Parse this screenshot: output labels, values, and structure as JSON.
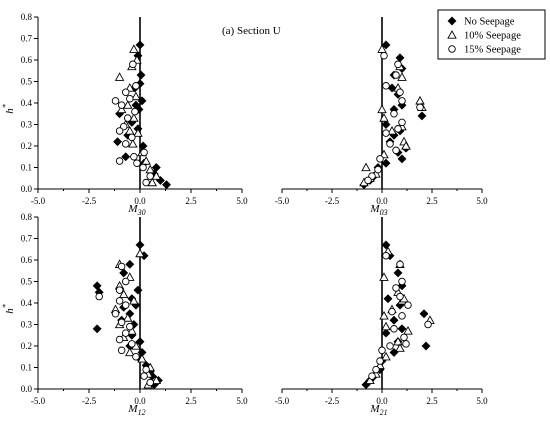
{
  "title": "(a) Section U",
  "legend": [
    {
      "label": "No Seepage",
      "marker": "diamond"
    },
    {
      "label": "10% Seepage",
      "marker": "triangle"
    },
    {
      "label": "15% Seepage",
      "marker": "circle"
    }
  ],
  "colors": {
    "ink": "#000000",
    "background": "#ffffff"
  },
  "chart_data": [
    {
      "type": "scatter",
      "xlabel_main": "M",
      "xlabel_sub": "30",
      "ylabel_main": "h",
      "ylabel_sup": "*",
      "xlim": [
        -5,
        5
      ],
      "ylim": [
        0,
        0.8
      ],
      "xticks": [
        "-5.0",
        "-2.5",
        "0.0",
        "2.5",
        "5.0"
      ],
      "yticks": [
        "0.0",
        "0.1",
        "0.2",
        "0.3",
        "0.4",
        "0.5",
        "0.6",
        "0.7",
        "0.8"
      ],
      "show_yaxis": true,
      "series": [
        {
          "name": "No Seepage",
          "marker": "diamond",
          "points": [
            [
              0.0,
              0.67
            ],
            [
              -0.1,
              0.62
            ],
            [
              0.05,
              0.53
            ],
            [
              -0.25,
              0.47
            ],
            [
              0.1,
              0.41
            ],
            [
              -0.2,
              0.39
            ],
            [
              -1.0,
              0.35
            ],
            [
              -0.4,
              0.31
            ],
            [
              -0.1,
              0.28
            ],
            [
              -0.6,
              0.25
            ],
            [
              -1.1,
              0.22
            ],
            [
              0.15,
              0.2
            ],
            [
              -0.7,
              0.15
            ],
            [
              0.2,
              0.12
            ],
            [
              0.8,
              0.1
            ],
            [
              0.7,
              0.07
            ],
            [
              1.0,
              0.04
            ],
            [
              1.3,
              0.02
            ],
            [
              -0.05,
              0.37
            ],
            [
              0.0,
              0.49
            ]
          ]
        },
        {
          "name": "10% Seepage",
          "marker": "triangle",
          "points": [
            [
              -0.3,
              0.65
            ],
            [
              -0.15,
              0.6
            ],
            [
              -0.4,
              0.57
            ],
            [
              -1.0,
              0.52
            ],
            [
              -0.5,
              0.47
            ],
            [
              -0.2,
              0.43
            ],
            [
              -0.6,
              0.39
            ],
            [
              -0.9,
              0.37
            ],
            [
              -0.3,
              0.33
            ],
            [
              -0.7,
              0.3
            ],
            [
              -0.1,
              0.26
            ],
            [
              -0.35,
              0.21
            ],
            [
              0.1,
              0.17
            ],
            [
              0.3,
              0.13
            ],
            [
              0.5,
              0.09
            ],
            [
              0.8,
              0.06
            ],
            [
              0.6,
              0.03
            ],
            [
              -0.5,
              0.27
            ]
          ]
        },
        {
          "name": "15% Seepage",
          "marker": "circle",
          "points": [
            [
              -0.35,
              0.58
            ],
            [
              -0.2,
              0.48
            ],
            [
              -0.7,
              0.45
            ],
            [
              -1.2,
              0.41
            ],
            [
              -0.5,
              0.42
            ],
            [
              -0.9,
              0.39
            ],
            [
              -0.25,
              0.36
            ],
            [
              -0.6,
              0.33
            ],
            [
              -0.8,
              0.29
            ],
            [
              -1.0,
              0.27
            ],
            [
              -0.4,
              0.24
            ],
            [
              -0.7,
              0.21
            ],
            [
              0.2,
              0.17
            ],
            [
              -0.3,
              0.15
            ],
            [
              0.15,
              0.1
            ],
            [
              0.5,
              0.06
            ],
            [
              0.3,
              0.03
            ],
            [
              -1.0,
              0.13
            ],
            [
              -0.15,
              0.12
            ]
          ]
        }
      ]
    },
    {
      "type": "scatter",
      "xlabel_main": "M",
      "xlabel_sub": "03",
      "xlim": [
        -5,
        5
      ],
      "ylim": [
        0,
        0.8
      ],
      "xticks": [
        "-5.0",
        "-2.5",
        "0.0",
        "2.5",
        "5.0"
      ],
      "show_yaxis": false,
      "series": [
        {
          "name": "No Seepage",
          "marker": "diamond",
          "points": [
            [
              0.2,
              0.67
            ],
            [
              0.9,
              0.61
            ],
            [
              1.0,
              0.56
            ],
            [
              0.6,
              0.53
            ],
            [
              0.5,
              0.47
            ],
            [
              0.8,
              0.44
            ],
            [
              1.0,
              0.39
            ],
            [
              0.6,
              0.37
            ],
            [
              2.0,
              0.34
            ],
            [
              0.2,
              0.3
            ],
            [
              0.9,
              0.27
            ],
            [
              0.6,
              0.25
            ],
            [
              0.4,
              0.22
            ],
            [
              1.2,
              0.19
            ],
            [
              0.8,
              0.17
            ],
            [
              1.0,
              0.14
            ],
            [
              0.2,
              0.12
            ],
            [
              -0.2,
              0.1
            ],
            [
              -0.4,
              0.06
            ],
            [
              -0.6,
              0.04
            ],
            [
              -0.9,
              0.02
            ]
          ]
        },
        {
          "name": "10% Seepage",
          "marker": "triangle",
          "points": [
            [
              0.0,
              0.65
            ],
            [
              0.9,
              0.57
            ],
            [
              1.0,
              0.52
            ],
            [
              0.8,
              0.47
            ],
            [
              1.9,
              0.41
            ],
            [
              0.0,
              0.37
            ],
            [
              2.0,
              0.38
            ],
            [
              0.1,
              0.33
            ],
            [
              1.0,
              0.29
            ],
            [
              0.5,
              0.27
            ],
            [
              1.1,
              0.22
            ],
            [
              1.2,
              0.2
            ],
            [
              0.1,
              0.16
            ],
            [
              -0.8,
              0.1
            ],
            [
              -0.3,
              0.07
            ],
            [
              -0.6,
              0.05
            ],
            [
              -0.9,
              0.03
            ]
          ]
        },
        {
          "name": "15% Seepage",
          "marker": "circle",
          "points": [
            [
              0.1,
              0.62
            ],
            [
              0.8,
              0.58
            ],
            [
              0.7,
              0.53
            ],
            [
              0.2,
              0.48
            ],
            [
              0.9,
              0.45
            ],
            [
              1.0,
              0.41
            ],
            [
              1.9,
              0.38
            ],
            [
              0.6,
              0.35
            ],
            [
              1.0,
              0.31
            ],
            [
              0.8,
              0.28
            ],
            [
              0.2,
              0.26
            ],
            [
              0.4,
              0.21
            ],
            [
              0.7,
              0.18
            ],
            [
              -0.1,
              0.14
            ],
            [
              -0.2,
              0.09
            ],
            [
              -0.5,
              0.06
            ],
            [
              -0.7,
              0.04
            ]
          ]
        }
      ]
    },
    {
      "type": "scatter",
      "xlabel_main": "M",
      "xlabel_sub": "12",
      "ylabel_main": "h",
      "ylabel_sup": "*",
      "xlim": [
        -5,
        5
      ],
      "ylim": [
        0,
        0.8
      ],
      "xticks": [
        "-5.0",
        "-2.5",
        "0.0",
        "2.5",
        "5.0"
      ],
      "yticks": [
        "0.0",
        "0.1",
        "0.2",
        "0.3",
        "0.4",
        "0.5",
        "0.6",
        "0.7",
        "0.8"
      ],
      "show_yaxis": true,
      "series": [
        {
          "name": "No Seepage",
          "marker": "diamond",
          "points": [
            [
              0.0,
              0.67
            ],
            [
              0.2,
              0.62
            ],
            [
              -0.5,
              0.58
            ],
            [
              -0.8,
              0.54
            ],
            [
              -2.1,
              0.48
            ],
            [
              -0.1,
              0.46
            ],
            [
              -2.0,
              0.45
            ],
            [
              -0.4,
              0.42
            ],
            [
              -0.2,
              0.39
            ],
            [
              -0.8,
              0.38
            ],
            [
              -0.5,
              0.35
            ],
            [
              -0.9,
              0.32
            ],
            [
              -0.3,
              0.3
            ],
            [
              -2.1,
              0.28
            ],
            [
              -0.4,
              0.25
            ],
            [
              0.0,
              0.22
            ],
            [
              -0.5,
              0.2
            ],
            [
              0.1,
              0.17
            ],
            [
              0.0,
              0.14
            ],
            [
              0.3,
              0.11
            ],
            [
              0.5,
              0.08
            ],
            [
              0.6,
              0.06
            ],
            [
              0.9,
              0.04
            ],
            [
              0.7,
              0.02
            ]
          ]
        },
        {
          "name": "10% Seepage",
          "marker": "triangle",
          "points": [
            [
              0.0,
              0.63
            ],
            [
              -1.0,
              0.58
            ],
            [
              -0.5,
              0.52
            ],
            [
              -1.0,
              0.48
            ],
            [
              -0.8,
              0.44
            ],
            [
              -0.3,
              0.41
            ],
            [
              -1.2,
              0.37
            ],
            [
              -0.6,
              0.33
            ],
            [
              -1.0,
              0.3
            ],
            [
              -0.4,
              0.27
            ],
            [
              -0.8,
              0.24
            ],
            [
              -0.2,
              0.2
            ],
            [
              -0.5,
              0.17
            ],
            [
              0.1,
              0.14
            ],
            [
              0.5,
              0.1
            ],
            [
              0.4,
              0.07
            ],
            [
              0.8,
              0.04
            ],
            [
              0.4,
              0.02
            ]
          ]
        },
        {
          "name": "15% Seepage",
          "marker": "circle",
          "points": [
            [
              -0.9,
              0.57
            ],
            [
              -0.7,
              0.5
            ],
            [
              -1.0,
              0.46
            ],
            [
              -2.0,
              0.43
            ],
            [
              -1.0,
              0.41
            ],
            [
              -0.7,
              0.39
            ],
            [
              -1.2,
              0.35
            ],
            [
              -0.9,
              0.31
            ],
            [
              -0.5,
              0.29
            ],
            [
              -0.7,
              0.26
            ],
            [
              -1.0,
              0.23
            ],
            [
              -0.4,
              0.21
            ],
            [
              -0.9,
              0.18
            ],
            [
              -0.2,
              0.15
            ],
            [
              0.3,
              0.09
            ],
            [
              0.2,
              0.06
            ],
            [
              0.5,
              0.03
            ]
          ]
        }
      ]
    },
    {
      "type": "scatter",
      "xlabel_main": "M",
      "xlabel_sub": "21",
      "xlim": [
        -5,
        5
      ],
      "ylim": [
        0,
        0.8
      ],
      "xticks": [
        "-5.0",
        "-2.5",
        "0.0",
        "2.5",
        "5.0"
      ],
      "show_yaxis": false,
      "series": [
        {
          "name": "No Seepage",
          "marker": "diamond",
          "points": [
            [
              0.2,
              0.67
            ],
            [
              0.4,
              0.62
            ],
            [
              0.8,
              0.54
            ],
            [
              1.0,
              0.48
            ],
            [
              0.3,
              0.42
            ],
            [
              0.9,
              0.39
            ],
            [
              2.1,
              0.35
            ],
            [
              0.6,
              0.32
            ],
            [
              1.0,
              0.28
            ],
            [
              0.2,
              0.26
            ],
            [
              0.8,
              0.22
            ],
            [
              2.2,
              0.2
            ],
            [
              0.6,
              0.17
            ],
            [
              0.0,
              0.13
            ],
            [
              -0.1,
              0.09
            ],
            [
              -0.4,
              0.06
            ],
            [
              -0.6,
              0.04
            ],
            [
              -0.8,
              0.02
            ]
          ]
        },
        {
          "name": "10% Seepage",
          "marker": "triangle",
          "points": [
            [
              0.3,
              0.64
            ],
            [
              0.9,
              0.58
            ],
            [
              0.1,
              0.52
            ],
            [
              0.8,
              0.45
            ],
            [
              1.0,
              0.41
            ],
            [
              0.5,
              0.37
            ],
            [
              2.4,
              0.32
            ],
            [
              0.2,
              0.29
            ],
            [
              1.3,
              0.27
            ],
            [
              0.8,
              0.22
            ],
            [
              0.9,
              0.19
            ],
            [
              0.2,
              0.15
            ],
            [
              -0.1,
              0.11
            ],
            [
              -0.3,
              0.07
            ],
            [
              -0.6,
              0.04
            ],
            [
              1.1,
              0.42
            ],
            [
              0.1,
              0.34
            ]
          ]
        },
        {
          "name": "15% Seepage",
          "marker": "circle",
          "points": [
            [
              0.2,
              0.62
            ],
            [
              0.9,
              0.58
            ],
            [
              1.0,
              0.5
            ],
            [
              0.7,
              0.47
            ],
            [
              0.9,
              0.43
            ],
            [
              1.3,
              0.39
            ],
            [
              0.5,
              0.36
            ],
            [
              1.0,
              0.34
            ],
            [
              2.3,
              0.3
            ],
            [
              0.6,
              0.28
            ],
            [
              1.1,
              0.24
            ],
            [
              0.4,
              0.2
            ],
            [
              0.0,
              0.18
            ],
            [
              -0.1,
              0.13
            ],
            [
              -0.3,
              0.09
            ],
            [
              -0.5,
              0.06
            ],
            [
              1.2,
              0.21
            ]
          ]
        }
      ]
    }
  ]
}
